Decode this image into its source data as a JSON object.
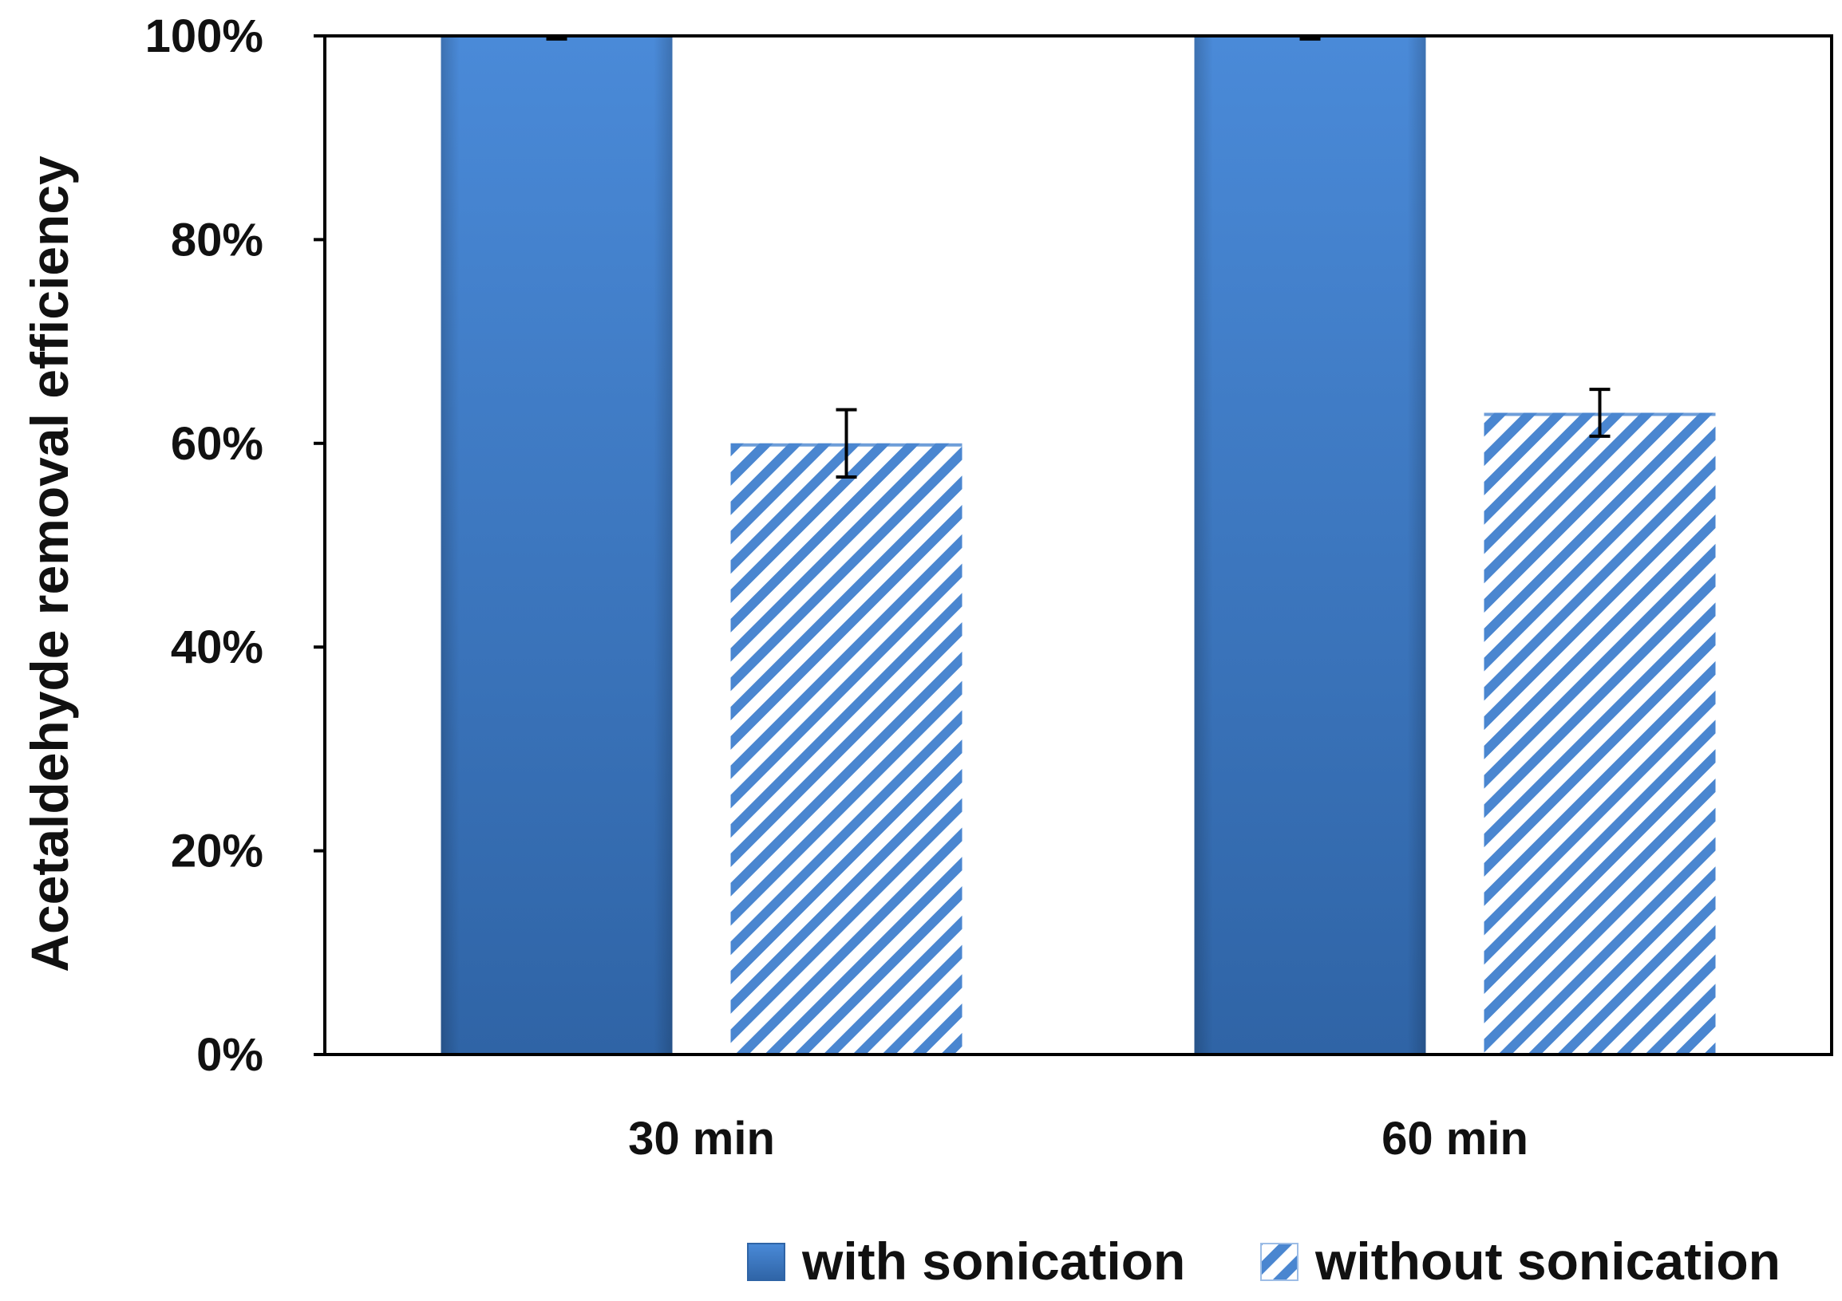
{
  "chart_data": {
    "type": "bar",
    "title": "",
    "xlabel": "",
    "ylabel": "Acetaldehyde removal efficiency",
    "categories": [
      "30 min",
      "60 min"
    ],
    "series": [
      {
        "name": "with sonication",
        "values": [
          100,
          100
        ],
        "error": [
          0.3,
          0.3
        ],
        "color": "#3f7fcf",
        "pattern": "solid-gradient"
      },
      {
        "name": "without sonication",
        "values": [
          60,
          63
        ],
        "error": [
          3.3,
          2.3
        ],
        "color": "#4a86d0",
        "pattern": "diagonal-stripes"
      }
    ],
    "ylim": [
      0,
      100
    ],
    "yticks": [
      0,
      20,
      40,
      60,
      80,
      100
    ],
    "ytick_labels": [
      "0%",
      "20%",
      "40%",
      "60%",
      "80%",
      "100%"
    ],
    "grid": false,
    "legend_position": "bottom"
  }
}
